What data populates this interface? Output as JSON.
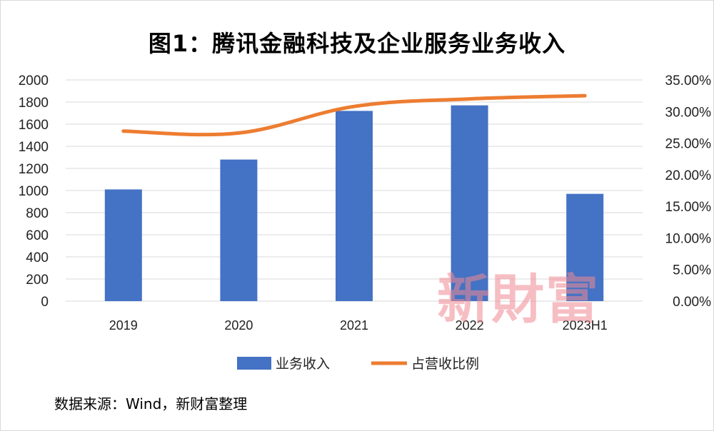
{
  "title": "图1：腾讯金融科技及企业服务业务收入",
  "source": "数据来源：Wind，新财富整理",
  "watermark": "新財富",
  "chart_data": {
    "type": "bar",
    "categories": [
      "2019",
      "2020",
      "2021",
      "2022",
      "2023H1"
    ],
    "series": [
      {
        "name": "业务收入",
        "type": "bar",
        "axis": "left",
        "color": "#4472C4",
        "values": [
          1010,
          1280,
          1720,
          1770,
          970
        ]
      },
      {
        "name": "占营收比例",
        "type": "line",
        "axis": "right",
        "color": "#ED7D31",
        "values": [
          0.269,
          0.266,
          0.308,
          0.32,
          0.325
        ]
      }
    ],
    "y_left": {
      "ylim": [
        0,
        2000
      ],
      "ticks": [
        "0",
        "200",
        "400",
        "600",
        "800",
        "1000",
        "1200",
        "1400",
        "1600",
        "1800",
        "2000"
      ]
    },
    "y_right": {
      "ylim": [
        0,
        0.35
      ],
      "ticks": [
        "0.00%",
        "5.00%",
        "10.00%",
        "15.00%",
        "20.00%",
        "25.00%",
        "30.00%",
        "35.00%"
      ]
    },
    "grid": true,
    "legend": "bottom"
  }
}
